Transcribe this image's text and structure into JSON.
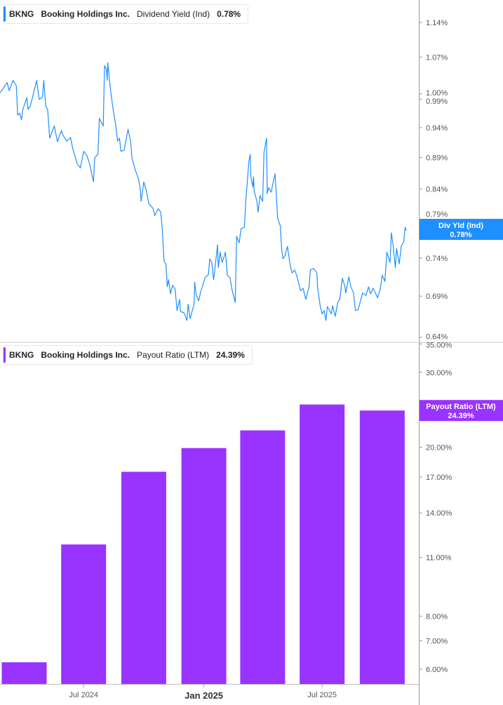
{
  "top_legend": {
    "ticker": "BKNG",
    "company": "Booking Holdings Inc.",
    "metric": "Dividend Yield (Ind)",
    "value": "0.78%"
  },
  "bottom_legend": {
    "ticker": "BKNG",
    "company": "Booking Holdings Inc.",
    "metric": "Payout Ratio (LTM)",
    "value": "24.39%"
  },
  "colors": {
    "line": "#1e8fff",
    "bar": "#9933ff",
    "axis": "#999999",
    "text": "#555555"
  },
  "chart_data": [
    {
      "type": "line",
      "title": "",
      "series": [
        {
          "name": "Div Yld (Ind)",
          "last_label": "0.78%",
          "points": [
            [
              "2024-02-24",
              1.002
            ],
            [
              "2024-03-06",
              1.021
            ],
            [
              "2024-03-09",
              1.006
            ],
            [
              "2024-03-15",
              1.025
            ],
            [
              "2024-03-20",
              1.015
            ],
            [
              "2024-03-22",
              0.962
            ],
            [
              "2024-03-25",
              0.965
            ],
            [
              "2024-03-28",
              0.954
            ],
            [
              "2024-03-30",
              0.972
            ],
            [
              "2024-04-05",
              0.993
            ],
            [
              "2024-04-07",
              0.972
            ],
            [
              "2024-04-10",
              0.977
            ],
            [
              "2024-04-13",
              0.99
            ],
            [
              "2024-04-20",
              1.025
            ],
            [
              "2024-04-24",
              0.99
            ],
            [
              "2024-04-29",
              0.994
            ],
            [
              "2024-05-01",
              1.025
            ],
            [
              "2024-05-04",
              0.978
            ],
            [
              "2024-05-07",
              0.971
            ],
            [
              "2024-05-10",
              0.922
            ],
            [
              "2024-05-13",
              0.931
            ],
            [
              "2024-05-17",
              0.943
            ],
            [
              "2024-05-22",
              0.916
            ],
            [
              "2024-05-28",
              0.935
            ],
            [
              "2024-05-30",
              0.928
            ],
            [
              "2024-06-05",
              0.917
            ],
            [
              "2024-06-11",
              0.923
            ],
            [
              "2024-06-14",
              0.906
            ],
            [
              "2024-06-21",
              0.88
            ],
            [
              "2024-06-26",
              0.873
            ],
            [
              "2024-07-01",
              0.9
            ],
            [
              "2024-07-06",
              0.893
            ],
            [
              "2024-07-10",
              0.88
            ],
            [
              "2024-07-16",
              0.851
            ],
            [
              "2024-07-18",
              0.889
            ],
            [
              "2024-07-23",
              0.896
            ],
            [
              "2024-07-25",
              0.956
            ],
            [
              "2024-07-31",
              0.943
            ],
            [
              "2024-08-02",
              1.053
            ],
            [
              "2024-08-05",
              1.046
            ],
            [
              "2024-08-06",
              1.025
            ],
            [
              "2024-08-07",
              1.059
            ],
            [
              "2024-08-10",
              1.019
            ],
            [
              "2024-08-14",
              0.981
            ],
            [
              "2024-08-16",
              0.965
            ],
            [
              "2024-08-19",
              0.946
            ],
            [
              "2024-08-22",
              0.917
            ],
            [
              "2024-08-25",
              0.922
            ],
            [
              "2024-08-27",
              0.9
            ],
            [
              "2024-09-01",
              0.902
            ],
            [
              "2024-09-07",
              0.937
            ],
            [
              "2024-09-11",
              0.916
            ],
            [
              "2024-09-13",
              0.889
            ],
            [
              "2024-09-18",
              0.87
            ],
            [
              "2024-09-23",
              0.856
            ],
            [
              "2024-09-26",
              0.837
            ],
            [
              "2024-09-27",
              0.821
            ],
            [
              "2024-10-01",
              0.851
            ],
            [
              "2024-10-05",
              0.837
            ],
            [
              "2024-10-09",
              0.817
            ],
            [
              "2024-10-15",
              0.811
            ],
            [
              "2024-10-18",
              0.8
            ],
            [
              "2024-10-23",
              0.81
            ],
            [
              "2024-10-27",
              0.805
            ],
            [
              "2024-10-29",
              0.785
            ],
            [
              "2024-11-01",
              0.736
            ],
            [
              "2024-11-04",
              0.732
            ],
            [
              "2024-11-06",
              0.702
            ],
            [
              "2024-11-08",
              0.711
            ],
            [
              "2024-11-11",
              0.693
            ],
            [
              "2024-11-14",
              0.704
            ],
            [
              "2024-11-18",
              0.699
            ],
            [
              "2024-11-21",
              0.672
            ],
            [
              "2024-11-25",
              0.686
            ],
            [
              "2024-11-26",
              0.671
            ],
            [
              "2024-12-02",
              0.669
            ],
            [
              "2024-12-06",
              0.66
            ],
            [
              "2024-12-08",
              0.68
            ],
            [
              "2024-12-11",
              0.662
            ],
            [
              "2024-12-17",
              0.68
            ],
            [
              "2024-12-18",
              0.708
            ],
            [
              "2024-12-20",
              0.693
            ],
            [
              "2024-12-24",
              0.684
            ],
            [
              "2024-12-27",
              0.695
            ],
            [
              "2025-01-03",
              0.714
            ],
            [
              "2025-01-08",
              0.718
            ],
            [
              "2025-01-10",
              0.739
            ],
            [
              "2025-01-13",
              0.734
            ],
            [
              "2025-01-16",
              0.711
            ],
            [
              "2025-01-22",
              0.758
            ],
            [
              "2025-01-23",
              0.727
            ],
            [
              "2025-01-26",
              0.748
            ],
            [
              "2025-01-29",
              0.734
            ],
            [
              "2025-02-03",
              0.748
            ],
            [
              "2025-02-06",
              0.717
            ],
            [
              "2025-02-10",
              0.714
            ],
            [
              "2025-02-13",
              0.699
            ],
            [
              "2025-02-18",
              0.682
            ],
            [
              "2025-02-20",
              0.77
            ],
            [
              "2025-02-24",
              0.761
            ],
            [
              "2025-02-27",
              0.781
            ],
            [
              "2025-03-04",
              0.783
            ],
            [
              "2025-03-06",
              0.819
            ],
            [
              "2025-03-11",
              0.884
            ],
            [
              "2025-03-13",
              0.895
            ],
            [
              "2025-03-14",
              0.859
            ],
            [
              "2025-03-17",
              0.843
            ],
            [
              "2025-03-18",
              0.859
            ],
            [
              "2025-03-19",
              0.837
            ],
            [
              "2025-03-23",
              0.822
            ],
            [
              "2025-03-25",
              0.805
            ],
            [
              "2025-03-28",
              0.83
            ],
            [
              "2025-04-01",
              0.821
            ],
            [
              "2025-04-03",
              0.898
            ],
            [
              "2025-04-07",
              0.922
            ],
            [
              "2025-04-08",
              0.833
            ],
            [
              "2025-04-10",
              0.842
            ],
            [
              "2025-04-14",
              0.835
            ],
            [
              "2025-04-16",
              0.845
            ],
            [
              "2025-04-20",
              0.864
            ],
            [
              "2025-04-24",
              0.796
            ],
            [
              "2025-04-28",
              0.785
            ],
            [
              "2025-04-30",
              0.753
            ],
            [
              "2025-05-02",
              0.739
            ],
            [
              "2025-05-05",
              0.743
            ],
            [
              "2025-05-09",
              0.756
            ],
            [
              "2025-05-13",
              0.731
            ],
            [
              "2025-05-16",
              0.72
            ],
            [
              "2025-05-20",
              0.724
            ],
            [
              "2025-05-23",
              0.717
            ],
            [
              "2025-05-29",
              0.697
            ],
            [
              "2025-06-02",
              0.7
            ],
            [
              "2025-06-06",
              0.686
            ],
            [
              "2025-06-11",
              0.702
            ],
            [
              "2025-06-13",
              0.724
            ],
            [
              "2025-06-18",
              0.726
            ],
            [
              "2025-06-23",
              0.72
            ],
            [
              "2025-06-24",
              0.702
            ],
            [
              "2025-06-28",
              0.678
            ],
            [
              "2025-07-01",
              0.668
            ],
            [
              "2025-07-04",
              0.672
            ],
            [
              "2025-07-07",
              0.66
            ],
            [
              "2025-07-09",
              0.677
            ],
            [
              "2025-07-15",
              0.668
            ],
            [
              "2025-07-17",
              0.678
            ],
            [
              "2025-07-21",
              0.665
            ],
            [
              "2025-07-25",
              0.682
            ],
            [
              "2025-07-28",
              0.686
            ],
            [
              "2025-08-01",
              0.713
            ],
            [
              "2025-08-05",
              0.702
            ],
            [
              "2025-08-06",
              0.694
            ],
            [
              "2025-08-11",
              0.715
            ],
            [
              "2025-08-14",
              0.702
            ],
            [
              "2025-08-18",
              0.694
            ],
            [
              "2025-08-21",
              0.672
            ],
            [
              "2025-08-25",
              0.673
            ],
            [
              "2025-08-28",
              0.682
            ],
            [
              "2025-09-01",
              0.694
            ],
            [
              "2025-09-06",
              0.691
            ],
            [
              "2025-09-10",
              0.702
            ],
            [
              "2025-09-13",
              0.693
            ],
            [
              "2025-09-17",
              0.7
            ],
            [
              "2025-09-20",
              0.695
            ],
            [
              "2025-09-24",
              0.688
            ],
            [
              "2025-09-28",
              0.699
            ],
            [
              "2025-10-01",
              0.717
            ],
            [
              "2025-10-05",
              0.709
            ],
            [
              "2025-10-08",
              0.748
            ],
            [
              "2025-10-13",
              0.734
            ],
            [
              "2025-10-15",
              0.775
            ],
            [
              "2025-10-18",
              0.755
            ],
            [
              "2025-10-21",
              0.727
            ],
            [
              "2025-10-23",
              0.753
            ],
            [
              "2025-10-27",
              0.732
            ],
            [
              "2025-10-30",
              0.756
            ],
            [
              "2025-11-03",
              0.763
            ],
            [
              "2025-11-05",
              0.783
            ],
            [
              "2025-11-07",
              0.778
            ]
          ]
        }
      ],
      "yscale": "log",
      "ylim": [
        0.634,
        1.188
      ],
      "xlim": [
        "2024-02-24",
        "2025-11-26"
      ],
      "yticks": [
        "1.14%",
        "1.07%",
        "1.00%",
        "0.99%",
        "0.94%",
        "0.89%",
        "0.84%",
        "0.79%",
        "0.74%",
        "0.69%",
        "0.64%"
      ],
      "ytick_values": [
        1.14,
        1.07,
        1.0,
        0.99,
        0.94,
        0.89,
        0.84,
        0.79,
        0.74,
        0.69,
        0.64
      ],
      "y_axis_position": "right",
      "grid": false
    },
    {
      "type": "bar",
      "title": "",
      "series": [
        {
          "name": "Payout Ratio (LTM)",
          "last_label": "24.39%",
          "categories": [
            "2024-03-31",
            "2024-06-30",
            "2024-09-30",
            "2024-12-31",
            "2025-03-31",
            "2025-06-30",
            "2025-09-30"
          ],
          "values": [
            6.23,
            11.8,
            17.5,
            19.9,
            21.9,
            25.2,
            24.39
          ]
        }
      ],
      "yscale": "log",
      "ylim": [
        5.54,
        35.3
      ],
      "yticks": [
        "35.00%",
        "30.00%",
        "20.00%",
        "17.00%",
        "14.00%",
        "11.00%",
        "8.00%",
        "7.00%",
        "6.00%"
      ],
      "ytick_values": [
        35,
        30,
        20,
        17,
        14,
        11,
        8,
        7,
        6
      ],
      "y_axis_position": "right",
      "grid": false,
      "xticks": [
        {
          "label": "Jul 2024",
          "date": "2024-07-01",
          "bold": false
        },
        {
          "label": "Jan 2025",
          "date": "2025-01-01",
          "bold": true
        },
        {
          "label": "Jul 2025",
          "date": "2025-07-01",
          "bold": false
        }
      ]
    }
  ],
  "tags": {
    "line_tag": {
      "label": "Div Yld (Ind)",
      "value": "0.78%"
    },
    "bar_tag": {
      "label": "Payout Ratio (LTM)",
      "value": "24.39%"
    }
  }
}
